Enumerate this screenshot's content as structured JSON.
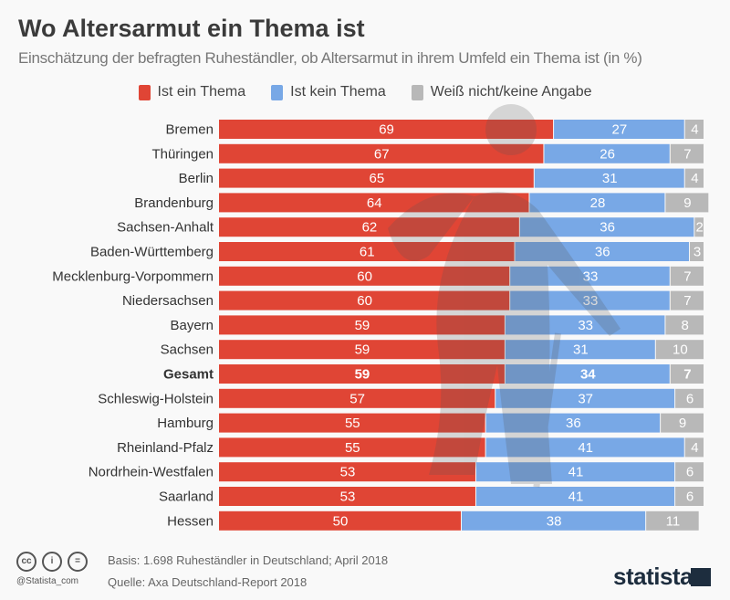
{
  "chart_data": {
    "type": "bar",
    "orientation": "horizontal",
    "stacked": true,
    "title": "Wo Altersarmut ein Thema ist",
    "subtitle": "Einschätzung der befragten Ruheständler, ob Altersarmut in ihrem Umfeld ein Thema ist (in %)",
    "legend_position": "top",
    "grid": false,
    "xlim": [
      0,
      100
    ],
    "categories": [
      "Bremen",
      "Thüringen",
      "Berlin",
      "Brandenburg",
      "Sachsen-Anhalt",
      "Baden-Württemberg",
      "Mecklenburg-Vorpommern",
      "Niedersachsen",
      "Bayern",
      "Sachsen",
      "Gesamt",
      "Schleswig-Holstein",
      "Hamburg",
      "Rheinland-Pfalz",
      "Nordrhein-Westfalen",
      "Saarland",
      "Hessen"
    ],
    "highlight_category": "Gesamt",
    "series": [
      {
        "name": "Ist ein Thema",
        "color": "#e04535",
        "values": [
          69,
          67,
          65,
          64,
          62,
          61,
          60,
          60,
          59,
          59,
          59,
          57,
          55,
          55,
          53,
          53,
          50
        ]
      },
      {
        "name": "Ist kein Thema",
        "color": "#78a8e6",
        "values": [
          27,
          26,
          31,
          28,
          36,
          36,
          33,
          33,
          33,
          31,
          34,
          37,
          36,
          41,
          41,
          41,
          38
        ]
      },
      {
        "name": "Weiß nicht/keine Angabe",
        "color": "#b8b8b8",
        "values": [
          4,
          7,
          4,
          9,
          2,
          3,
          7,
          7,
          8,
          10,
          7,
          6,
          9,
          4,
          6,
          6,
          11
        ]
      }
    ]
  },
  "footer": {
    "basis": "Basis: 1.698 Ruheständler in Deutschland; April 2018",
    "source": "Quelle: Axa Deutschland-Report 2018",
    "handle": "@Statista_com",
    "logo": "statista",
    "license_icons": [
      "cc",
      "by",
      "nd"
    ]
  }
}
